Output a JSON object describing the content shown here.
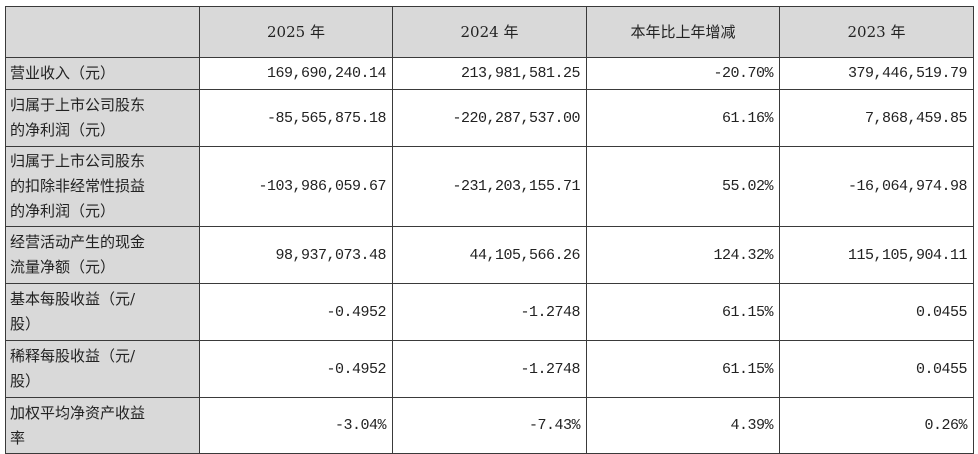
{
  "table": {
    "headers": [
      "",
      "2025 年",
      "2024 年",
      "本年比上年增减",
      "2023 年"
    ],
    "rows": [
      {
        "label": "营业收入（元）",
        "values": [
          "169,690,240.14",
          "213,981,581.25",
          "-20.70%",
          "379,446,519.79"
        ]
      },
      {
        "label": "归属于上市公司股东\n的净利润（元）",
        "values": [
          "-85,565,875.18",
          "-220,287,537.00",
          "61.16%",
          "7,868,459.85"
        ]
      },
      {
        "label": "归属于上市公司股东\n的扣除非经常性损益\n的净利润（元）",
        "values": [
          "-103,986,059.67",
          "-231,203,155.71",
          "55.02%",
          "-16,064,974.98"
        ]
      },
      {
        "label": "经营活动产生的现金\n流量净额（元）",
        "values": [
          "98,937,073.48",
          "44,105,566.26",
          "124.32%",
          "115,105,904.11"
        ]
      },
      {
        "label": "基本每股收益（元/\n股）",
        "values": [
          "-0.4952",
          "-1.2748",
          "61.15%",
          "0.0455"
        ]
      },
      {
        "label": "稀释每股收益（元/\n股）",
        "values": [
          "-0.4952",
          "-1.2748",
          "61.15%",
          "0.0455"
        ]
      },
      {
        "label": "加权平均净资产收益\n率",
        "values": [
          "-3.04%",
          "-7.43%",
          "4.39%",
          "0.26%"
        ]
      }
    ]
  }
}
